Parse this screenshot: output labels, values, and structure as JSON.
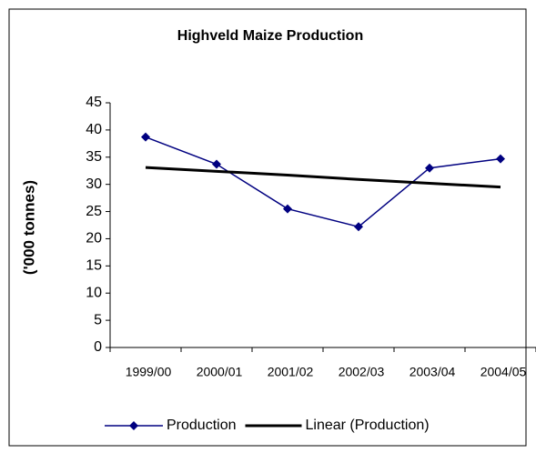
{
  "chart_data": {
    "type": "line",
    "title": "Highveld Maize Production",
    "y_label": "('000 tonnes)",
    "categories": [
      "1999/00",
      "2000/01",
      "2001/02",
      "2002/03",
      "2003/04",
      "2004/05"
    ],
    "series": [
      {
        "name": "Production",
        "color": "#000080",
        "marker": "diamond",
        "values": [
          38.7,
          33.7,
          25.5,
          22.2,
          33.0,
          34.7
        ]
      },
      {
        "name": "Linear (Production)",
        "color": "#000000",
        "marker": "none",
        "values": [
          33.1,
          32.4,
          31.7,
          30.9,
          30.2,
          29.5
        ]
      }
    ],
    "ylim": [
      0,
      45
    ],
    "yticks": [
      0,
      5,
      10,
      15,
      20,
      25,
      30,
      35,
      40,
      45
    ],
    "grid": false,
    "legend": "bottom"
  }
}
